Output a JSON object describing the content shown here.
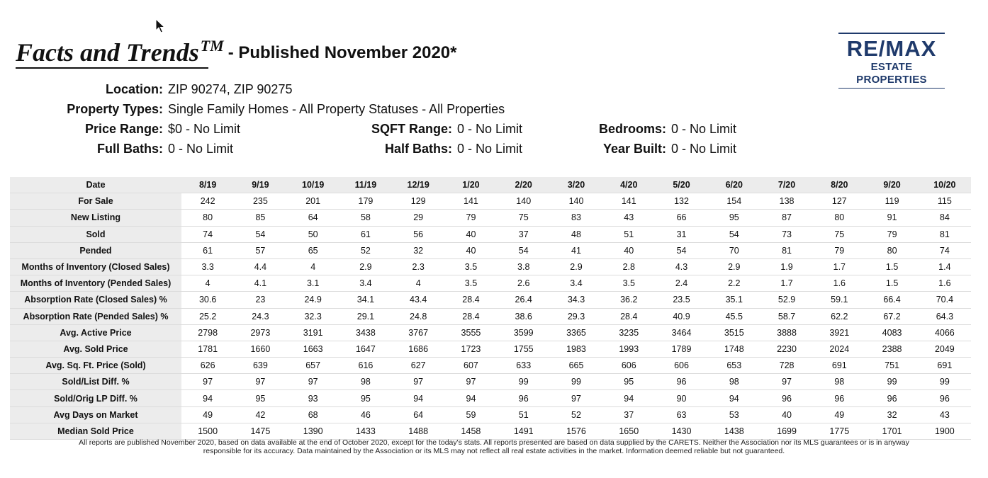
{
  "header": {
    "title": "Facts and Trends",
    "trademark": "TM",
    "subtitle": "- Published November 2020*"
  },
  "logo": {
    "name": "RE/MAX",
    "sub": "ESTATE PROPERTIES",
    "color": "#1f3a6b"
  },
  "criteria": {
    "location": {
      "label": "Location:",
      "value": "ZIP 90274, ZIP 90275"
    },
    "property_types": {
      "label": "Property Types:",
      "value": "Single Family Homes - All Property Statuses - All Properties"
    },
    "price_range": {
      "label": "Price Range:",
      "value": "$0 - No Limit"
    },
    "sqft_range": {
      "label": "SQFT Range:",
      "value": "0 - No Limit"
    },
    "bedrooms": {
      "label": "Bedrooms:",
      "value": "0 - No Limit"
    },
    "full_baths": {
      "label": "Full Baths:",
      "value": "0 - No Limit"
    },
    "half_baths": {
      "label": "Half Baths:",
      "value": "0 - No Limit"
    },
    "year_built": {
      "label": "Year Built:",
      "value": "0 - No Limit"
    }
  },
  "table": {
    "header_label": "Date",
    "columns": [
      "8/19",
      "9/19",
      "10/19",
      "11/19",
      "12/19",
      "1/20",
      "2/20",
      "3/20",
      "4/20",
      "5/20",
      "6/20",
      "7/20",
      "8/20",
      "9/20",
      "10/20"
    ],
    "rows": [
      {
        "label": "For Sale",
        "values": [
          "242",
          "235",
          "201",
          "179",
          "129",
          "141",
          "140",
          "140",
          "141",
          "132",
          "154",
          "138",
          "127",
          "119",
          "115"
        ]
      },
      {
        "label": "New Listing",
        "values": [
          "80",
          "85",
          "64",
          "58",
          "29",
          "79",
          "75",
          "83",
          "43",
          "66",
          "95",
          "87",
          "80",
          "91",
          "84"
        ]
      },
      {
        "label": "Sold",
        "values": [
          "74",
          "54",
          "50",
          "61",
          "56",
          "40",
          "37",
          "48",
          "51",
          "31",
          "54",
          "73",
          "75",
          "79",
          "81"
        ]
      },
      {
        "label": "Pended",
        "values": [
          "61",
          "57",
          "65",
          "52",
          "32",
          "40",
          "54",
          "41",
          "40",
          "54",
          "70",
          "81",
          "79",
          "80",
          "74"
        ]
      },
      {
        "label": "Months of Inventory (Closed Sales)",
        "values": [
          "3.3",
          "4.4",
          "4",
          "2.9",
          "2.3",
          "3.5",
          "3.8",
          "2.9",
          "2.8",
          "4.3",
          "2.9",
          "1.9",
          "1.7",
          "1.5",
          "1.4"
        ]
      },
      {
        "label": "Months of Inventory (Pended Sales)",
        "values": [
          "4",
          "4.1",
          "3.1",
          "3.4",
          "4",
          "3.5",
          "2.6",
          "3.4",
          "3.5",
          "2.4",
          "2.2",
          "1.7",
          "1.6",
          "1.5",
          "1.6"
        ]
      },
      {
        "label": "Absorption Rate (Closed Sales) %",
        "values": [
          "30.6",
          "23",
          "24.9",
          "34.1",
          "43.4",
          "28.4",
          "26.4",
          "34.3",
          "36.2",
          "23.5",
          "35.1",
          "52.9",
          "59.1",
          "66.4",
          "70.4"
        ]
      },
      {
        "label": "Absorption Rate (Pended Sales) %",
        "values": [
          "25.2",
          "24.3",
          "32.3",
          "29.1",
          "24.8",
          "28.4",
          "38.6",
          "29.3",
          "28.4",
          "40.9",
          "45.5",
          "58.7",
          "62.2",
          "67.2",
          "64.3"
        ]
      },
      {
        "label": "Avg. Active Price",
        "values": [
          "2798",
          "2973",
          "3191",
          "3438",
          "3767",
          "3555",
          "3599",
          "3365",
          "3235",
          "3464",
          "3515",
          "3888",
          "3921",
          "4083",
          "4066"
        ]
      },
      {
        "label": "Avg. Sold Price",
        "values": [
          "1781",
          "1660",
          "1663",
          "1647",
          "1686",
          "1723",
          "1755",
          "1983",
          "1993",
          "1789",
          "1748",
          "2230",
          "2024",
          "2388",
          "2049"
        ]
      },
      {
        "label": "Avg. Sq. Ft. Price (Sold)",
        "values": [
          "626",
          "639",
          "657",
          "616",
          "627",
          "607",
          "633",
          "665",
          "606",
          "606",
          "653",
          "728",
          "691",
          "751",
          "691"
        ]
      },
      {
        "label": "Sold/List Diff. %",
        "values": [
          "97",
          "97",
          "97",
          "98",
          "97",
          "97",
          "99",
          "99",
          "95",
          "96",
          "98",
          "97",
          "98",
          "99",
          "99"
        ]
      },
      {
        "label": "Sold/Orig LP Diff. %",
        "values": [
          "94",
          "95",
          "93",
          "95",
          "94",
          "94",
          "96",
          "97",
          "94",
          "90",
          "94",
          "96",
          "96",
          "96",
          "96"
        ]
      },
      {
        "label": "Avg Days on Market",
        "values": [
          "49",
          "42",
          "68",
          "46",
          "64",
          "59",
          "51",
          "52",
          "37",
          "63",
          "53",
          "40",
          "49",
          "32",
          "43"
        ]
      },
      {
        "label": "Median Sold Price",
        "values": [
          "1500",
          "1475",
          "1390",
          "1433",
          "1488",
          "1458",
          "1491",
          "1576",
          "1650",
          "1430",
          "1438",
          "1699",
          "1775",
          "1701",
          "1900"
        ]
      }
    ]
  },
  "footer": {
    "line1": "All reports are published November 2020, based on data available at the end of October 2020, except for the today's stats. All reports presented are based on data supplied by the CARETS. Neither the Association nor its MLS guarantees or is in anyway",
    "line2": "responsible for its accuracy. Data maintained by the Association or its MLS may not reflect all real estate activities in the market. Information deemed reliable but not guaranteed."
  }
}
